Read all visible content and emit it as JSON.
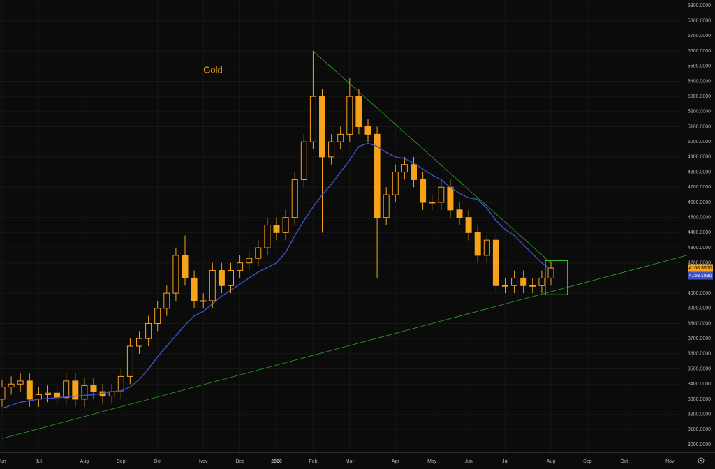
{
  "chart_data": {
    "type": "candlestick",
    "title": "Gold",
    "color": "#f7a21b",
    "ma_color": "#3f51c9",
    "trendline_color": "#2fa82f",
    "grid": true,
    "categories": [
      "Jun",
      null,
      null,
      null,
      "Jul",
      null,
      null,
      null,
      null,
      "Aug",
      null,
      null,
      null,
      "Sep",
      null,
      null,
      null,
      "Oct",
      null,
      null,
      null,
      null,
      "Nov",
      null,
      null,
      null,
      "Dec",
      null,
      null,
      null,
      "2026",
      null,
      null,
      null,
      "Feb",
      null,
      null,
      null,
      "Mar",
      null,
      null,
      null,
      null,
      "Apr",
      null,
      null,
      null,
      "May",
      null,
      null,
      null,
      "Jun",
      null,
      null,
      null,
      "Jul",
      null,
      null,
      null,
      null,
      "Aug",
      null,
      null,
      null,
      "Sep",
      null,
      null,
      null,
      "Oct",
      null,
      null,
      null,
      null,
      "Nov",
      null
    ],
    "open": [
      3300,
      3380,
      3400,
      3420,
      3300,
      3330,
      3340,
      3310,
      3420,
      3300,
      3390,
      3350,
      3320,
      3350,
      3450,
      3650,
      3700,
      3800,
      3900,
      4000,
      4250,
      4100,
      3950,
      3950,
      4150,
      4050,
      4150,
      4200,
      4230,
      4300,
      4450,
      4400,
      4500,
      4750,
      5000,
      5300,
      4900,
      5000,
      5050,
      5300,
      5100,
      5050,
      4500,
      4650,
      4800,
      4850,
      4750,
      4600,
      4600,
      4700,
      4550,
      4500,
      4400,
      4250,
      4350,
      4050,
      4050,
      4100,
      4050,
      4050,
      4100,
      null,
      null,
      null,
      null,
      null,
      null,
      null,
      null,
      null,
      null,
      null,
      null,
      null,
      null
    ],
    "high": [
      3430,
      3450,
      3470,
      3470,
      3380,
      3390,
      3390,
      3470,
      3470,
      3440,
      3440,
      3400,
      3400,
      3500,
      3700,
      3750,
      3850,
      3950,
      4050,
      4300,
      4380,
      4150,
      4000,
      4200,
      4200,
      4200,
      4250,
      4280,
      4350,
      4500,
      4500,
      4550,
      4800,
      5050,
      5600,
      5350,
      5050,
      5100,
      5420,
      5350,
      5150,
      5100,
      4700,
      4850,
      4900,
      4900,
      4800,
      4650,
      4750,
      4750,
      4600,
      4550,
      4450,
      4380,
      4400,
      4100,
      4150,
      4150,
      4100,
      4150,
      4210,
      null,
      null,
      null,
      null,
      null,
      null,
      null,
      null,
      null,
      null,
      null,
      null,
      null,
      null
    ],
    "low": [
      3250,
      3330,
      3350,
      3250,
      3250,
      3280,
      3260,
      3260,
      3250,
      3250,
      3300,
      3270,
      3270,
      3300,
      3400,
      3600,
      3650,
      3750,
      3850,
      3950,
      4050,
      3900,
      3900,
      3900,
      4000,
      4000,
      4100,
      4150,
      4180,
      4250,
      4350,
      4350,
      4450,
      4700,
      4950,
      4400,
      4850,
      4950,
      5000,
      5050,
      5000,
      4100,
      4450,
      4600,
      4750,
      4700,
      4550,
      4550,
      4550,
      4500,
      4450,
      4350,
      4200,
      4200,
      4000,
      4000,
      4000,
      4000,
      4000,
      4000,
      4050,
      null,
      null,
      null,
      null,
      null,
      null,
      null,
      null,
      null,
      null,
      null,
      null,
      null,
      null
    ],
    "close": [
      3380,
      3400,
      3420,
      3300,
      3330,
      3340,
      3310,
      3420,
      3300,
      3390,
      3350,
      3320,
      3350,
      3450,
      3650,
      3700,
      3800,
      3900,
      4000,
      4250,
      4100,
      3950,
      3950,
      4150,
      4050,
      4150,
      4200,
      4230,
      4300,
      4450,
      4400,
      4500,
      4750,
      5000,
      5300,
      4900,
      5000,
      5050,
      5300,
      5100,
      5050,
      4500,
      4650,
      4800,
      4850,
      4750,
      4600,
      4600,
      4700,
      4550,
      4500,
      4400,
      4250,
      4350,
      4050,
      4050,
      4100,
      4050,
      4050,
      4100,
      4166.35,
      null,
      null,
      null,
      null,
      null,
      null,
      null,
      null,
      null,
      null,
      null,
      null,
      null,
      null
    ],
    "ma": [
      3240,
      3260,
      3280,
      3290,
      3300,
      3305,
      3310,
      3315,
      3320,
      3325,
      3330,
      3340,
      3350,
      3355,
      3380,
      3430,
      3500,
      3580,
      3650,
      3720,
      3790,
      3850,
      3880,
      3930,
      3980,
      4020,
      4060,
      4100,
      4140,
      4170,
      4200,
      4270,
      4380,
      4480,
      4570,
      4650,
      4720,
      4800,
      4880,
      4970,
      4990,
      4970,
      4930,
      4900,
      4890,
      4860,
      4820,
      4780,
      4750,
      4700,
      4660,
      4630,
      4620,
      4560,
      4480,
      4420,
      4380,
      4320,
      4260,
      4200,
      4159.183,
      null,
      null,
      null,
      null,
      null,
      null,
      null,
      null,
      null,
      null,
      null,
      null,
      null,
      null
    ],
    "trendlines": [
      {
        "points": [
          [
            34,
            5600
          ],
          [
            60,
            4200
          ]
        ]
      },
      {
        "points": [
          [
            0,
            3040
          ],
          [
            60,
            4010
          ]
        ]
      }
    ],
    "highlight": {
      "from": 59.4,
      "to": 61.8,
      "ylim": [
        3990,
        4215
      ]
    },
    "last_price": {
      "value": 4166.35,
      "label": "4166.3500"
    },
    "ma_last": {
      "value": 4159.183,
      "label": "4159.1830"
    },
    "ylim": [
      3000,
      5900
    ],
    "yticks": [
      {
        "value": 3000,
        "label": "3000.0000"
      },
      {
        "value": 3100,
        "label": "3100.0000"
      },
      {
        "value": 3200,
        "label": "3200.0000"
      },
      {
        "value": 3300,
        "label": "3300.0000"
      },
      {
        "value": 3400,
        "label": "3400.0000"
      },
      {
        "value": 3500,
        "label": "3500.0000"
      },
      {
        "value": 3600,
        "label": "3600.0000"
      },
      {
        "value": 3700,
        "label": "3700.0000"
      },
      {
        "value": 3800,
        "label": "3800.0000"
      },
      {
        "value": 3900,
        "label": "3900.0000"
      },
      {
        "value": 4000,
        "label": "4000.0000"
      },
      {
        "value": 4100,
        "label": "4100.0000"
      },
      {
        "value": 4200,
        "label": "4200.0000"
      },
      {
        "value": 4300,
        "label": "4300.0000"
      },
      {
        "value": 4400,
        "label": "4400.0000"
      },
      {
        "value": 4500,
        "label": "4500.0000"
      },
      {
        "value": 4600,
        "label": "4600.0000"
      },
      {
        "value": 4700,
        "label": "4700.0000"
      },
      {
        "value": 4800,
        "label": "4800.0000"
      },
      {
        "value": 4900,
        "label": "4900.0000"
      },
      {
        "value": 5000,
        "label": "5000.0000"
      },
      {
        "value": 5100,
        "label": "5100.0000"
      },
      {
        "value": 5200,
        "label": "5200.0000"
      },
      {
        "value": 5300,
        "label": "5300.0000"
      },
      {
        "value": 5400,
        "label": "5400.0000"
      },
      {
        "value": 5500,
        "label": "5500.0000"
      },
      {
        "value": 5600,
        "label": "5600.0000"
      },
      {
        "value": 5700,
        "label": "5700.0000"
      },
      {
        "value": 5800,
        "label": "5800.0000"
      },
      {
        "value": 5900,
        "label": "5900.0000"
      }
    ]
  }
}
